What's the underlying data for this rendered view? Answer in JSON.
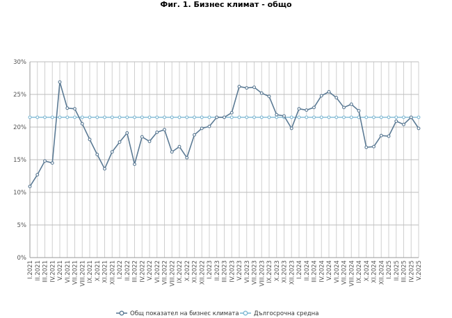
{
  "title": "Фиг. 1. Бизнес климат - общо",
  "chart_data": {
    "type": "line",
    "title": "Фиг. 1. Бизнес климат - общо",
    "ylim": [
      0,
      30
    ],
    "yticks": [
      "0%",
      "5%",
      "10%",
      "15%",
      "20%",
      "25%",
      "30%"
    ],
    "grid": true,
    "legend_position": "bottom",
    "categories": [
      "I.2021",
      "II.2021",
      "III.2021",
      "IV.2021",
      "V.2021",
      "VI.2021",
      "VII.2021",
      "VIII.2021",
      "IX.2021",
      "X.2021",
      "XI.2021",
      "XII.2021",
      "I.2022",
      "II.2022",
      "III.2022",
      "IV.2022",
      "V.2022",
      "VI.2022",
      "VII.2022",
      "VIII.2022",
      "IX.2022",
      "X.2022",
      "XI.2022",
      "XII.2022",
      "I.2023",
      "II.2023",
      "III.2023",
      "IV.2023",
      "V.2023",
      "VI.2023",
      "VII.2023",
      "VIII.2023",
      "IX.2023",
      "X.2023",
      "XI.2023",
      "XII.2023",
      "I.2024",
      "II.2024",
      "III.2024",
      "IV.2024",
      "V.2024",
      "VI.2024",
      "VII.2024",
      "VIII.2024",
      "IX.2024",
      "X.2024",
      "XI.2024",
      "XII.2024",
      "I.2025",
      "II.2025",
      "III.2025",
      "IV.2025",
      "V.2025"
    ],
    "series": [
      {
        "name": "Общ показател на бизнес климата",
        "color": "#5b7a94",
        "values": [
          10.9,
          12.7,
          14.8,
          14.5,
          26.9,
          22.9,
          22.8,
          20.5,
          18.1,
          15.8,
          13.6,
          16.2,
          17.7,
          19.1,
          14.3,
          18.5,
          17.8,
          19.2,
          19.6,
          16.2,
          17.0,
          15.3,
          18.8,
          19.8,
          20.1,
          21.5,
          21.5,
          22.2,
          26.2,
          26.0,
          26.1,
          25.2,
          24.7,
          21.9,
          21.7,
          19.8,
          22.8,
          22.6,
          23.0,
          24.8,
          25.4,
          24.5,
          23.0,
          23.5,
          22.5,
          16.9,
          17.0,
          18.7,
          18.6,
          20.9,
          20.4,
          21.5,
          19.8
        ]
      },
      {
        "name": "Дългосрочна средна",
        "color": "#7fb9d4",
        "values": [
          21.5,
          21.5,
          21.5,
          21.5,
          21.5,
          21.5,
          21.5,
          21.5,
          21.5,
          21.5,
          21.5,
          21.5,
          21.5,
          21.5,
          21.5,
          21.5,
          21.5,
          21.5,
          21.5,
          21.5,
          21.5,
          21.5,
          21.5,
          21.5,
          21.5,
          21.5,
          21.5,
          21.5,
          21.5,
          21.5,
          21.5,
          21.5,
          21.5,
          21.5,
          21.5,
          21.5,
          21.5,
          21.5,
          21.5,
          21.5,
          21.5,
          21.5,
          21.5,
          21.5,
          21.5,
          21.5,
          21.5,
          21.5,
          21.5,
          21.5,
          21.5,
          21.5,
          21.5
        ]
      }
    ]
  }
}
